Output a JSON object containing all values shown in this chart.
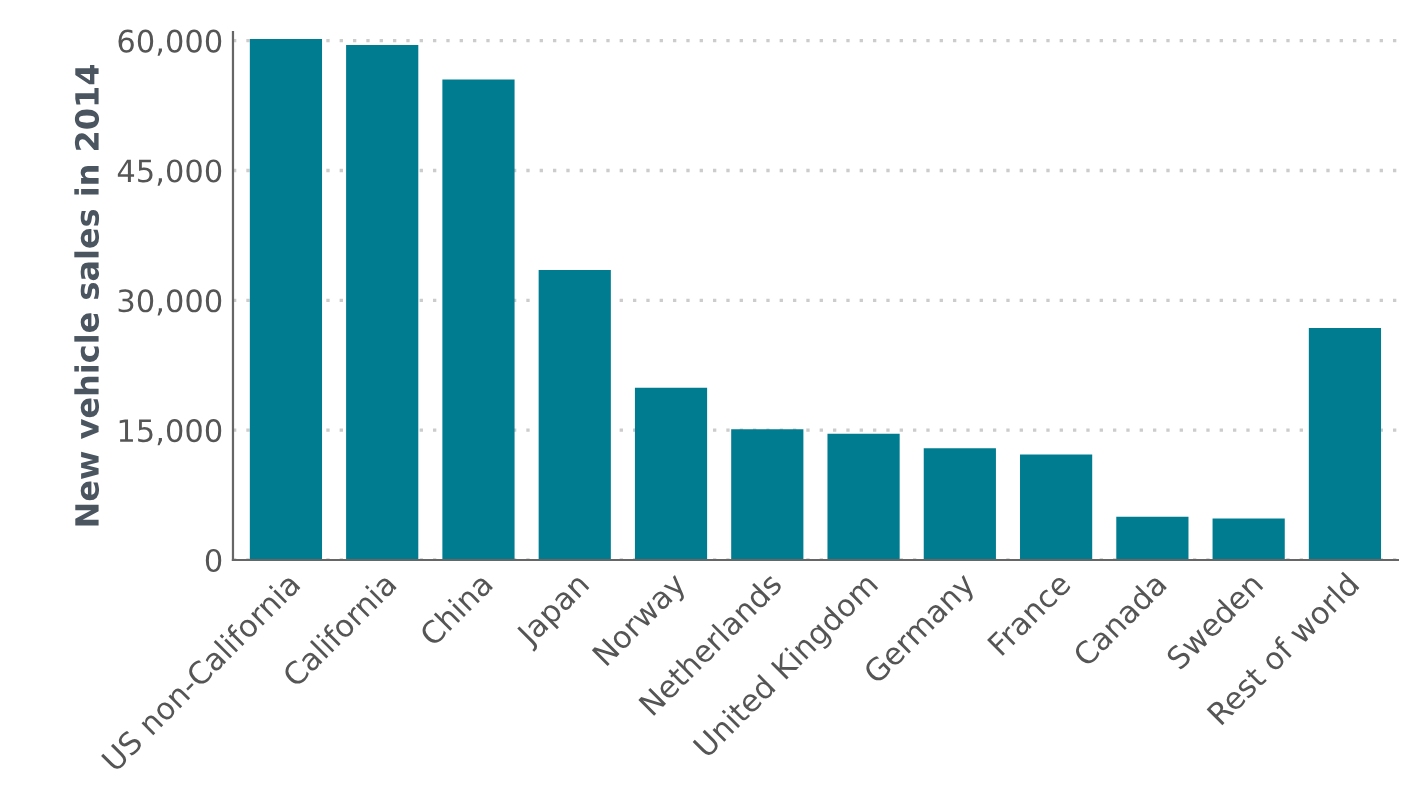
{
  "chart_data": {
    "type": "bar",
    "ylabel": "New vehicle sales in 2014",
    "categories": [
      "US non-California",
      "California",
      "China",
      "Japan",
      "Norway",
      "Netherlands",
      "United Kingdom",
      "Germany",
      "France",
      "Canada",
      "Sweden",
      "Rest of world"
    ],
    "values": [
      60200,
      59500,
      55500,
      33500,
      19900,
      15100,
      14600,
      12900,
      12200,
      5000,
      4800,
      26800
    ],
    "color": "#007c91",
    "ylim": [
      0,
      61000
    ],
    "yticks": [
      0,
      {
        "value": 15000,
        "label": "15,000"
      },
      {
        "value": 30000,
        "label": "30,000"
      },
      {
        "value": 45000,
        "label": "45,000"
      },
      {
        "value": 60000,
        "label": "60,000"
      }
    ],
    "grid": "y"
  }
}
